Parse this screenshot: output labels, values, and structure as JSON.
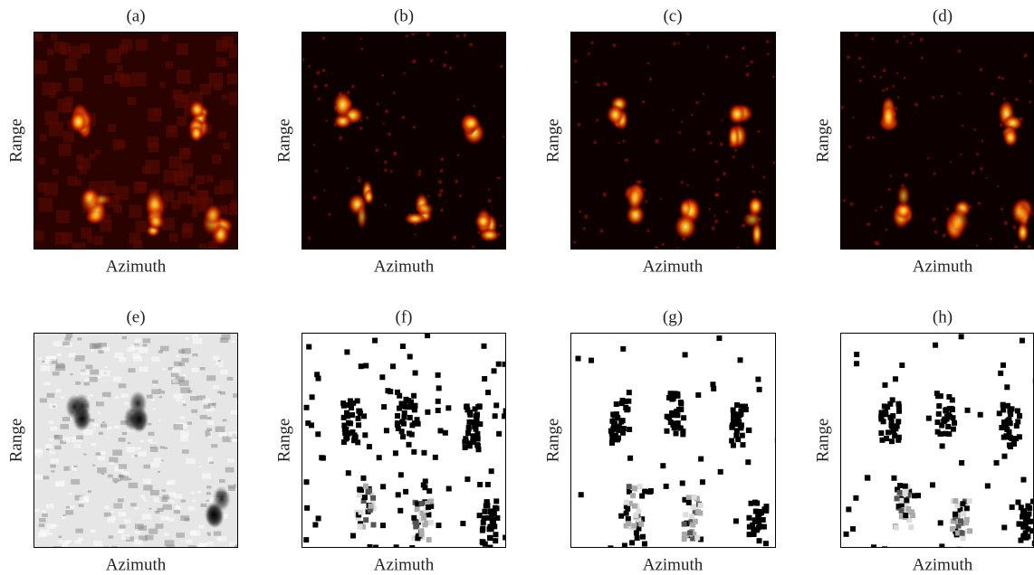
{
  "panels": [
    {
      "label": "(a)",
      "x_label": "Azimuth",
      "y_label": "Range"
    },
    {
      "label": "(b)",
      "x_label": "Azimuth",
      "y_label": "Range"
    },
    {
      "label": "(c)",
      "x_label": "Azimuth",
      "y_label": "Range"
    },
    {
      "label": "(d)",
      "x_label": "Azimuth",
      "y_label": "Range"
    },
    {
      "label": "(e)",
      "x_label": "Azimuth",
      "y_label": "Range"
    },
    {
      "label": "(f)",
      "x_label": "Azimuth",
      "y_label": "Range"
    },
    {
      "label": "(g)",
      "x_label": "Azimuth",
      "y_label": "Range"
    },
    {
      "label": "(h)",
      "x_label": "Azimuth",
      "y_label": "Range"
    }
  ]
}
